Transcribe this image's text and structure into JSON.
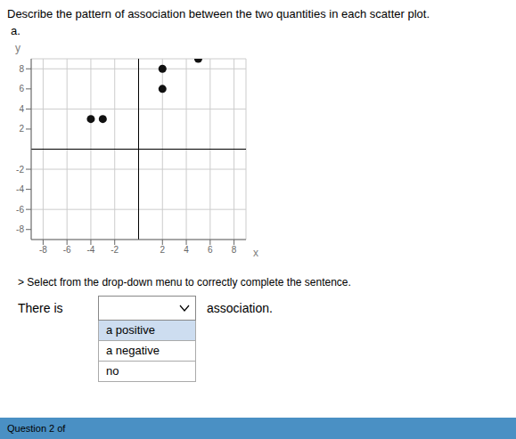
{
  "chart_data": {
    "type": "scatter",
    "title": "Describe the pattern of association between the two quantities in each scatter plot.",
    "x_label": "x",
    "y_label": "y",
    "x": [
      -4,
      -3,
      2,
      2,
      5
    ],
    "values": [
      3,
      3,
      8,
      6,
      9
    ],
    "color": "#111111",
    "xlim": [
      -9,
      9
    ],
    "ylim": [
      -9,
      9
    ],
    "xticks": [
      -8,
      -6,
      -4,
      -2,
      2,
      4,
      6,
      8
    ],
    "yticks": [
      -8,
      -6,
      -4,
      -2,
      2,
      4,
      6,
      8
    ],
    "grid": true,
    "annotations": [
      "a.",
      "> Select from the drop-down menu to correctly complete the sentence.",
      "There is",
      "association.",
      "a positive",
      "a negative",
      "no",
      "Question 2 of"
    ]
  }
}
